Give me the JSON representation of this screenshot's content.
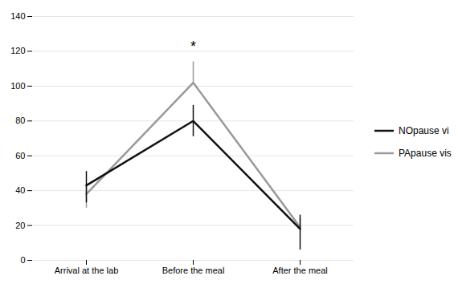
{
  "chart_data": {
    "type": "line",
    "categories": [
      "Arrival at the lab",
      "Before the meal",
      "After the meal"
    ],
    "series": [
      {
        "name": "NOpause vi",
        "color": "#111111",
        "values": [
          43,
          80,
          18
        ],
        "yerr_plus": [
          8,
          9,
          8
        ],
        "yerr_minus": [
          10,
          9,
          12
        ]
      },
      {
        "name": "PApause vis",
        "color": "#999999",
        "values": [
          38,
          102,
          19
        ],
        "yerr_plus": [
          5,
          12,
          5
        ],
        "yerr_minus": [
          8,
          0,
          0
        ]
      }
    ],
    "ylim": [
      0,
      140
    ],
    "yticks": [
      0,
      20,
      40,
      60,
      80,
      100,
      120,
      140
    ],
    "grid": true,
    "legend": "right",
    "annotations": [
      {
        "text": "*",
        "x": "Before the meal",
        "y": 120
      }
    ]
  }
}
